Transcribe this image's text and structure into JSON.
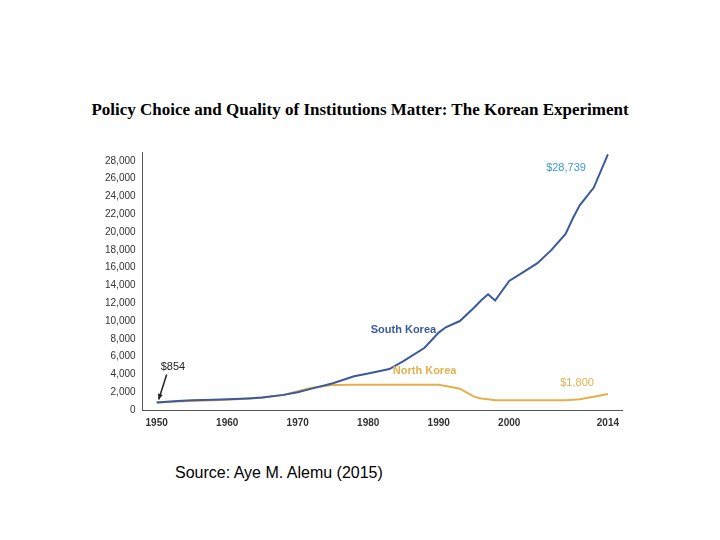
{
  "chart_data": {
    "type": "line",
    "title": "Policy Choice and Quality of Institutions Matter: The Korean Experiment",
    "source": "Source: Aye M. Alemu (2015)",
    "x": [
      1950,
      1953,
      1955,
      1958,
      1960,
      1963,
      1965,
      1968,
      1970,
      1972,
      1975,
      1978,
      1980,
      1983,
      1985,
      1988,
      1990,
      1991,
      1993,
      1995,
      1996,
      1997,
      1998,
      2000,
      2002,
      2004,
      2006,
      2008,
      2009,
      2010,
      2012,
      2014
    ],
    "series": [
      {
        "name": "South Korea",
        "color": "#3b5a9d",
        "values": [
          854,
          1000,
          1100,
          1150,
          1200,
          1300,
          1400,
          1700,
          2000,
          2400,
          3000,
          3800,
          4100,
          4600,
          5500,
          7000,
          8700,
          9300,
          10000,
          11500,
          12300,
          13000,
          12300,
          14500,
          15500,
          16500,
          18000,
          19800,
          21500,
          23000,
          25000,
          28739
        ]
      },
      {
        "name": "North Korea",
        "color": "#e3b04b",
        "values": [
          854,
          950,
          1000,
          1100,
          1150,
          1300,
          1400,
          1700,
          2100,
          2500,
          2800,
          2850,
          2850,
          2850,
          2850,
          2850,
          2850,
          2700,
          2400,
          1500,
          1300,
          1200,
          1100,
          1100,
          1100,
          1100,
          1100,
          1100,
          1150,
          1200,
          1500,
          1800
        ]
      }
    ],
    "annotations": [
      {
        "x": 1950,
        "y": 854,
        "text": "$854",
        "color": "#222222"
      },
      {
        "x": 2014,
        "y": 28739,
        "text": "$28,739",
        "color": "#3a9bd5"
      },
      {
        "x": 2014,
        "y": 1800,
        "text": "$1,800",
        "color": "#e3b04b"
      }
    ],
    "xlim": [
      1948,
      2016
    ],
    "xticks": [
      1950,
      1960,
      1970,
      1980,
      1990,
      2000,
      2014
    ],
    "ylim": [
      0,
      29000
    ],
    "yticks": [
      0,
      {
        "value": 2000,
        "label": "2,000"
      },
      {
        "value": 4000,
        "label": "4,000"
      },
      {
        "value": 6000,
        "label": "6,000"
      },
      {
        "value": 8000,
        "label": "8,000"
      },
      {
        "value": 10000,
        "label": "10,000"
      },
      {
        "value": 12000,
        "label": "12,000"
      },
      {
        "value": 14000,
        "label": "14,000"
      },
      {
        "value": 16000,
        "label": "16,000"
      },
      {
        "value": 18000,
        "label": "18,000"
      },
      {
        "value": 20000,
        "label": "20,000"
      },
      {
        "value": 22000,
        "label": "22,000"
      },
      {
        "value": 24000,
        "label": "24,000"
      },
      {
        "value": 26000,
        "label": "26,000"
      },
      {
        "value": 28000,
        "label": "28,000"
      }
    ],
    "grid": false
  }
}
